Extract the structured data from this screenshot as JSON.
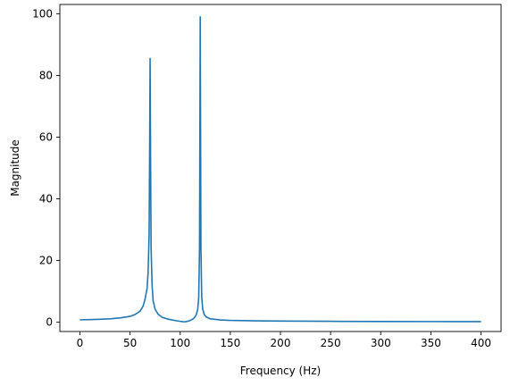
{
  "chart_data": {
    "type": "line",
    "title": "",
    "xlabel": "Frequency (Hz)",
    "ylabel": "Magnitude",
    "xlim": [
      -20,
      420
    ],
    "ylim": [
      -3,
      103
    ],
    "xticks": [
      "0",
      "50",
      "100",
      "150",
      "200",
      "250",
      "300",
      "350",
      "400"
    ],
    "yticks": [
      "0",
      "20",
      "40",
      "60",
      "80",
      "100"
    ],
    "grid": false,
    "series": [
      {
        "color": "#1f77b4",
        "x": [
          0,
          10,
          20,
          30,
          40,
          50,
          55,
          60,
          63,
          65,
          67,
          68,
          69,
          69.5,
          70,
          70.5,
          71,
          72,
          73,
          75,
          78,
          82,
          88,
          95,
          100,
          103,
          105,
          108,
          110,
          112,
          114,
          116,
          117.5,
          118.5,
          119.3,
          120,
          120.7,
          121.5,
          122.5,
          124,
          126,
          130,
          140,
          150,
          175,
          200,
          250,
          300,
          350,
          400
        ],
        "y": [
          0.8,
          0.85,
          0.95,
          1.1,
          1.4,
          1.9,
          2.5,
          3.6,
          5.2,
          7.5,
          11,
          16,
          28,
          52,
          85.5,
          52,
          24,
          12,
          7,
          4.2,
          2.6,
          1.6,
          1.0,
          0.55,
          0.3,
          0.18,
          0.15,
          0.35,
          0.6,
          0.9,
          1.4,
          2.4,
          4.2,
          8,
          24,
          99,
          24,
          8,
          4.2,
          2.5,
          1.7,
          1.1,
          0.75,
          0.6,
          0.45,
          0.38,
          0.3,
          0.25,
          0.22,
          0.2
        ]
      }
    ]
  }
}
